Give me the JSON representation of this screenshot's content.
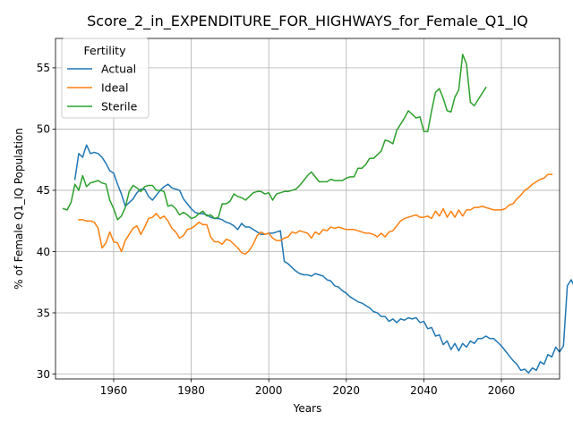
{
  "chart_data": {
    "type": "line",
    "title": "Score_2_in_EXPENDITURE_FOR_HIGHWAYS_for_Female_Q1_IQ",
    "xlabel": "Years",
    "ylabel": "% of Female Q1_IQ Population",
    "xlim": [
      1945,
      2075
    ],
    "ylim": [
      29.6,
      57.4
    ],
    "xticks": [
      1960,
      1980,
      2000,
      2020,
      2040,
      2060
    ],
    "yticks": [
      30,
      35,
      40,
      45,
      50,
      55
    ],
    "grid": true,
    "legend": {
      "title": "Fertility",
      "placement": "upper-left"
    },
    "series": [
      {
        "name": "Actual",
        "color": "#1f77b4",
        "start": 1950,
        "values": [
          45.9,
          48.0,
          47.7,
          48.7,
          48.0,
          48.1,
          48.0,
          47.7,
          47.2,
          46.6,
          46.4,
          45.5,
          44.7,
          43.7,
          44.0,
          44.3,
          44.8,
          45.1,
          45.1,
          44.5,
          44.2,
          44.6,
          45.0,
          45.3,
          45.5,
          45.2,
          45.1,
          45.0,
          44.3,
          43.9,
          43.5,
          43.2,
          43.1,
          43.1,
          43.0,
          42.8,
          42.7,
          42.7,
          42.6,
          42.4,
          42.3,
          42.1,
          41.8,
          42.3,
          42.0,
          42.0,
          41.8,
          41.6,
          41.4,
          41.4,
          41.5,
          41.5,
          41.6,
          41.7,
          39.2,
          39.0,
          38.7,
          38.4,
          38.2,
          38.1,
          38.1,
          38.0,
          38.2,
          38.1,
          38.0,
          37.7,
          37.6,
          37.2,
          37.1,
          36.8,
          36.6,
          36.3,
          36.1,
          35.9,
          35.8,
          35.6,
          35.4,
          35.1,
          35.0,
          34.7,
          34.7,
          34.3,
          34.5,
          34.2,
          34.5,
          34.4,
          34.6,
          34.5,
          34.6,
          34.2,
          34.3,
          33.7,
          33.8,
          33.1,
          33.2,
          32.4,
          32.7,
          32.0,
          32.5,
          31.9,
          32.5,
          32.2,
          32.7,
          32.5,
          32.9,
          32.9,
          33.1,
          32.9,
          32.9,
          32.6,
          32.3,
          31.9,
          31.5,
          31.1,
          30.8,
          30.3,
          30.4,
          30.1,
          30.5,
          30.3,
          31.0,
          30.8,
          31.6,
          31.4,
          32.2,
          31.8,
          32.3,
          37.2,
          37.7,
          37.0
        ]
      },
      {
        "name": "Ideal",
        "color": "#ff7f0e",
        "start": 1951,
        "values": [
          42.6,
          42.6,
          42.5,
          42.5,
          42.4,
          41.9,
          40.3,
          40.7,
          41.6,
          40.8,
          40.7,
          40.0,
          40.9,
          41.4,
          41.9,
          42.1,
          41.4,
          42.0,
          42.7,
          42.8,
          43.1,
          42.7,
          42.9,
          42.5,
          41.9,
          41.6,
          41.1,
          41.3,
          41.8,
          41.9,
          42.1,
          42.4,
          42.2,
          42.2,
          41.2,
          40.8,
          40.8,
          40.6,
          41.0,
          40.9,
          40.6,
          40.3,
          39.9,
          39.8,
          40.1,
          40.6,
          41.3,
          41.6,
          41.4,
          41.5,
          41.1,
          40.9,
          40.9,
          41.1,
          41.2,
          41.6,
          41.5,
          41.7,
          41.6,
          41.5,
          41.1,
          41.6,
          41.4,
          41.8,
          41.7,
          42.0,
          41.9,
          42.0,
          41.9,
          41.8,
          41.8,
          41.8,
          41.7,
          41.6,
          41.5,
          41.5,
          41.4,
          41.2,
          41.5,
          41.2,
          41.6,
          41.7,
          42.1,
          42.5,
          42.7,
          42.8,
          42.9,
          43.0,
          42.8,
          42.8,
          42.9,
          42.7,
          43.3,
          42.9,
          43.5,
          42.8,
          43.3,
          42.8,
          43.4,
          42.9,
          43.4,
          43.4,
          43.6,
          43.6,
          43.7,
          43.6,
          43.5,
          43.4,
          43.4,
          43.4,
          43.5,
          43.8,
          43.9,
          44.3,
          44.6,
          45.0,
          45.2,
          45.5,
          45.7,
          45.9,
          46.0,
          46.3,
          46.3
        ]
      },
      {
        "name": "Sterile",
        "color": "#2ca02c",
        "start": 1947,
        "values": [
          43.5,
          43.4,
          44.0,
          45.5,
          45.0,
          46.2,
          45.3,
          45.6,
          45.7,
          45.8,
          45.6,
          45.5,
          44.2,
          43.5,
          42.6,
          42.9,
          43.6,
          44.9,
          45.4,
          45.2,
          44.9,
          45.3,
          45.4,
          45.4,
          45.0,
          45.0,
          44.9,
          43.7,
          43.8,
          43.5,
          43.0,
          43.2,
          43.0,
          42.7,
          42.8,
          43.1,
          43.3,
          42.9,
          43.0,
          42.7,
          42.8,
          43.9,
          43.9,
          44.1,
          44.7,
          44.5,
          44.4,
          44.2,
          44.5,
          44.8,
          44.9,
          44.9,
          44.7,
          44.8,
          44.2,
          44.7,
          44.8,
          44.9,
          44.9,
          45.0,
          45.1,
          45.4,
          45.8,
          46.2,
          46.5,
          46.1,
          45.7,
          45.7,
          45.7,
          45.9,
          45.8,
          45.8,
          45.8,
          46.0,
          46.1,
          46.1,
          46.8,
          46.8,
          47.1,
          47.6,
          47.6,
          47.9,
          48.2,
          49.1,
          49.0,
          48.8,
          49.9,
          50.4,
          50.9,
          51.5,
          51.2,
          50.9,
          51.0,
          49.8,
          49.8,
          51.5,
          53.0,
          53.3,
          52.5,
          51.5,
          51.4,
          52.6,
          53.2,
          56.1,
          55.3,
          52.2,
          51.9,
          52.4,
          52.9,
          53.4
        ]
      }
    ]
  }
}
